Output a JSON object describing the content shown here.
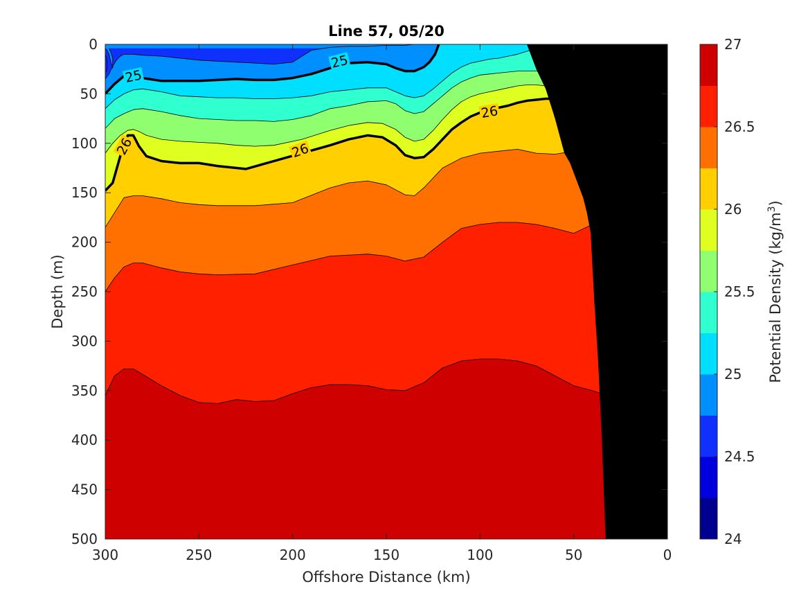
{
  "chart_data": {
    "type": "contour",
    "title": "Line 57, 05/20",
    "xlabel": "Offshore Distance (km)",
    "ylabel": "Depth (m)",
    "colorbar_label_main": "Potential Density (kg/m",
    "colorbar_label_sup": "3",
    "colorbar_label_close": ")",
    "xlim": [
      300,
      0
    ],
    "ylim": [
      0,
      500
    ],
    "x_reversed": true,
    "y_reversed": true,
    "x_ticks": [
      "300",
      "250",
      "200",
      "150",
      "100",
      "50",
      "0"
    ],
    "y_ticks": [
      "0",
      "50",
      "100",
      "150",
      "200",
      "250",
      "300",
      "350",
      "400",
      "450",
      "500"
    ],
    "colorbar_range": [
      24,
      27
    ],
    "colorbar_ticks": [
      "24",
      "24.5",
      "25",
      "25.5",
      "26",
      "26.5",
      "27"
    ],
    "contour_levels": [
      24.0,
      24.25,
      24.5,
      24.75,
      25.0,
      25.25,
      25.5,
      25.75,
      26.0,
      26.25,
      26.5,
      26.75,
      27.0
    ],
    "level_colors": [
      "#00008f",
      "#0000df",
      "#0f30ff",
      "#008fff",
      "#00dfff",
      "#30ffcf",
      "#8fff70",
      "#dfff20",
      "#ffcf00",
      "#ff7000",
      "#ff2000",
      "#cf0000"
    ],
    "bold_contour_labels": [
      "25",
      "25",
      "26",
      "26",
      "26"
    ],
    "bottom_color": "#000000",
    "isopycnals": [
      {
        "sigma": 26.75,
        "distance_km": [
          300,
          295,
          290,
          285,
          270,
          260,
          250,
          240,
          230,
          220,
          210,
          200,
          190,
          180,
          170,
          160,
          150,
          140,
          130,
          120,
          110,
          100,
          90,
          80,
          70,
          60,
          50,
          40,
          32
        ],
        "depth_m": [
          355,
          335,
          328,
          328,
          345,
          355,
          362,
          363,
          359,
          361,
          360,
          353,
          347,
          344,
          344,
          345,
          349,
          350,
          342,
          327,
          320,
          318,
          318,
          320,
          325,
          335,
          345,
          350,
          355
        ]
      },
      {
        "sigma": 26.5,
        "distance_km": [
          300,
          295,
          290,
          285,
          280,
          270,
          260,
          250,
          240,
          220,
          200,
          180,
          170,
          160,
          150,
          140,
          130,
          120,
          110,
          100,
          90,
          80,
          70,
          60,
          50,
          40,
          30,
          22
        ],
        "depth_m": [
          250,
          236,
          225,
          221,
          221,
          226,
          230,
          232,
          233,
          232,
          223,
          214,
          213,
          212,
          214,
          219,
          215,
          200,
          186,
          182,
          180,
          180,
          182,
          186,
          191,
          182,
          168,
          150
        ]
      },
      {
        "sigma": 26.25,
        "distance_km": [
          300,
          295,
          290,
          285,
          280,
          270,
          260,
          250,
          240,
          230,
          220,
          200,
          180,
          170,
          160,
          150,
          140,
          135,
          130,
          120,
          110,
          100,
          90,
          80,
          70,
          60,
          50,
          45,
          40,
          35,
          30,
          25,
          20,
          15,
          10,
          5
        ],
        "depth_m": [
          185,
          170,
          155,
          153,
          153,
          156,
          160,
          162,
          163,
          163,
          163,
          160,
          145,
          140,
          138,
          142,
          152,
          153,
          145,
          125,
          115,
          110,
          108,
          106,
          110,
          111,
          108,
          104,
          90,
          75,
          60,
          46,
          37,
          33,
          31,
          30
        ]
      },
      {
        "sigma": 26.0,
        "distance_km": [
          300,
          296,
          292,
          288,
          285,
          282,
          278,
          270,
          260,
          250,
          240,
          225,
          210,
          195,
          180,
          170,
          160,
          152,
          145,
          140,
          135,
          130,
          125,
          120,
          115,
          110,
          105,
          100,
          95,
          90,
          85,
          80,
          75,
          70,
          65,
          60,
          55,
          50,
          45,
          40,
          35,
          28
        ],
        "depth_m": [
          148,
          140,
          113,
          92,
          92,
          103,
          113,
          118,
          120,
          120,
          123,
          126,
          118,
          110,
          102,
          96,
          92,
          94,
          102,
          112,
          115,
          114,
          106,
          96,
          86,
          79,
          73,
          69,
          66,
          64,
          62,
          59,
          57,
          56,
          55,
          55,
          55,
          53,
          43,
          30,
          16,
          0
        ]
      },
      {
        "sigma": 25.75,
        "distance_km": [
          300,
          296,
          292,
          288,
          285,
          282,
          278,
          270,
          260,
          250,
          240,
          230,
          220,
          210,
          195,
          180,
          170,
          160,
          152,
          145,
          140,
          135,
          130,
          125,
          120,
          115,
          110,
          105,
          100,
          95,
          90,
          85,
          80,
          75,
          70,
          65,
          60,
          55,
          50,
          45,
          40,
          35
        ],
        "depth_m": [
          110,
          100,
          92,
          87,
          86,
          88,
          92,
          96,
          98,
          99,
          100,
          102,
          103,
          102,
          96,
          87,
          82,
          79,
          80,
          86,
          94,
          98,
          96,
          87,
          76,
          66,
          58,
          53,
          50,
          48,
          46,
          44,
          42,
          41,
          41,
          42,
          41,
          37,
          28,
          17,
          6,
          0
        ]
      },
      {
        "sigma": 25.5,
        "distance_km": [
          300,
          295,
          290,
          285,
          280,
          270,
          260,
          250,
          240,
          230,
          220,
          210,
          200,
          190,
          180,
          170,
          160,
          150,
          145,
          140,
          135,
          130,
          125,
          120,
          115,
          110,
          105,
          100,
          95,
          90,
          85,
          80,
          75,
          70,
          65,
          60,
          55,
          50,
          48,
          45,
          42
        ],
        "depth_m": [
          85,
          75,
          70,
          66,
          65,
          68,
          72,
          75,
          76,
          77,
          77,
          78,
          76,
          72,
          65,
          62,
          58,
          57,
          60,
          67,
          70,
          68,
          60,
          52,
          44,
          38,
          34,
          31,
          30,
          29,
          28,
          27,
          27,
          27,
          26,
          24,
          20,
          12,
          6,
          2,
          0
        ]
      },
      {
        "sigma": 25.25,
        "distance_km": [
          300,
          295,
          290,
          285,
          280,
          270,
          260,
          250,
          240,
          230,
          220,
          210,
          200,
          190,
          180,
          170,
          160,
          150,
          145,
          140,
          135,
          130,
          125,
          120,
          115,
          110,
          105,
          100,
          95,
          90,
          85,
          80,
          75,
          70,
          65,
          62,
          60
        ],
        "depth_m": [
          65,
          56,
          50,
          46,
          45,
          48,
          52,
          53,
          54,
          54,
          55,
          55,
          54,
          52,
          48,
          46,
          44,
          44,
          48,
          52,
          54,
          52,
          45,
          37,
          29,
          23,
          19,
          17,
          15,
          14,
          12,
          10,
          7,
          4,
          2,
          1,
          0
        ]
      },
      {
        "sigma": 25.0,
        "distance_km": [
          300,
          295,
          290,
          285,
          280,
          270,
          260,
          250,
          240,
          230,
          220,
          210,
          200,
          190,
          180,
          175,
          170,
          160,
          150,
          145,
          140,
          135,
          130,
          127,
          124,
          122
        ],
        "depth_m": [
          50,
          40,
          32,
          30,
          34,
          37,
          37,
          37,
          36,
          35,
          36,
          36,
          34,
          30,
          24,
          21,
          19,
          18,
          20,
          24,
          27,
          27,
          23,
          18,
          10,
          0
        ]
      },
      {
        "sigma": 24.75,
        "distance_km": [
          300,
          298,
          296,
          294,
          292,
          290,
          285,
          280,
          270,
          260,
          250,
          240,
          230,
          220,
          210,
          200,
          195,
          190,
          180,
          170,
          165,
          160,
          150,
          140,
          135,
          130
        ],
        "depth_m": [
          35,
          30,
          22,
          16,
          12,
          10,
          10,
          11,
          12,
          14,
          16,
          17,
          18,
          19,
          20,
          18,
          12,
          6,
          3,
          2,
          2,
          2,
          1,
          1,
          0,
          0
        ]
      },
      {
        "sigma": 24.5,
        "distance_km": [
          300,
          299,
          298,
          297,
          296,
          296,
          297,
          298
        ],
        "depth_m": [
          4,
          6,
          10,
          18,
          24,
          14,
          8,
          4
        ]
      },
      {
        "sigma": 24.25,
        "distance_km": [
          300,
          299.5,
          299,
          299,
          299.5
        ],
        "depth_m": [
          10,
          13,
          18,
          24,
          28
        ]
      }
    ],
    "bottom_topography": {
      "distance_km": [
        33,
        35,
        37,
        39,
        41,
        43,
        45,
        48,
        50,
        52,
        55,
        60,
        65,
        70,
        75
      ],
      "depth_m": [
        500,
        400,
        320,
        260,
        190,
        170,
        155,
        140,
        130,
        120,
        110,
        75,
        45,
        25,
        0
      ]
    }
  }
}
